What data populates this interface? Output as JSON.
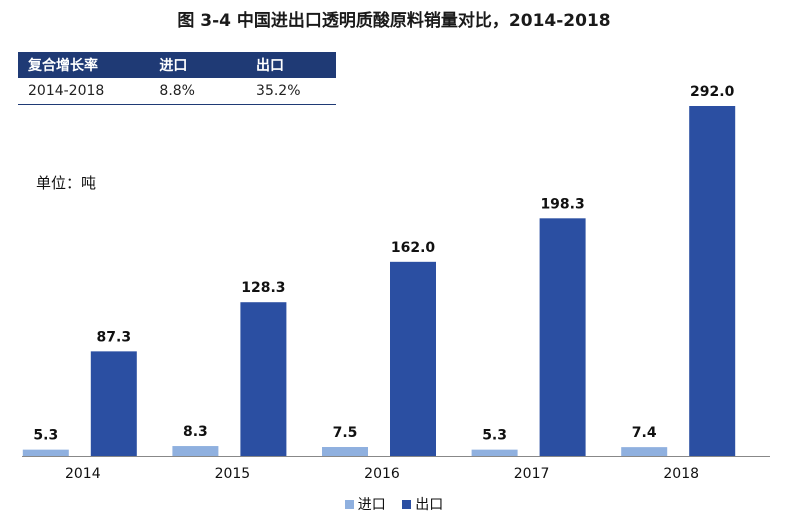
{
  "title": "图 3-4  中国进出口透明质酸原料销量对比，2014-2018",
  "cagr_table": {
    "headers": [
      "复合增长率",
      "进口",
      "出口"
    ],
    "rows": [
      [
        "2014-2018",
        "8.8%",
        "35.2%"
      ]
    ]
  },
  "unit_label": "单位：吨",
  "colors": {
    "import": "#8fb0df",
    "export": "#2b4fa2",
    "table_header": "#1f3a75"
  },
  "chart_data": {
    "type": "bar",
    "categories": [
      "2014",
      "2015",
      "2016",
      "2017",
      "2018"
    ],
    "series": [
      {
        "name": "进口",
        "values": [
          5.3,
          8.3,
          7.5,
          5.3,
          7.4
        ]
      },
      {
        "name": "出口",
        "values": [
          87.3,
          128.3,
          162.0,
          198.3,
          292.0
        ]
      }
    ],
    "value_labels": [
      [
        "5.3",
        "8.3",
        "7.5",
        "5.3",
        "7.4"
      ],
      [
        "87.3",
        "128.3",
        "162.0",
        "198.3",
        "292.0"
      ]
    ],
    "ylim": [
      0,
      292
    ],
    "grid": false,
    "legend_position": "bottom"
  }
}
